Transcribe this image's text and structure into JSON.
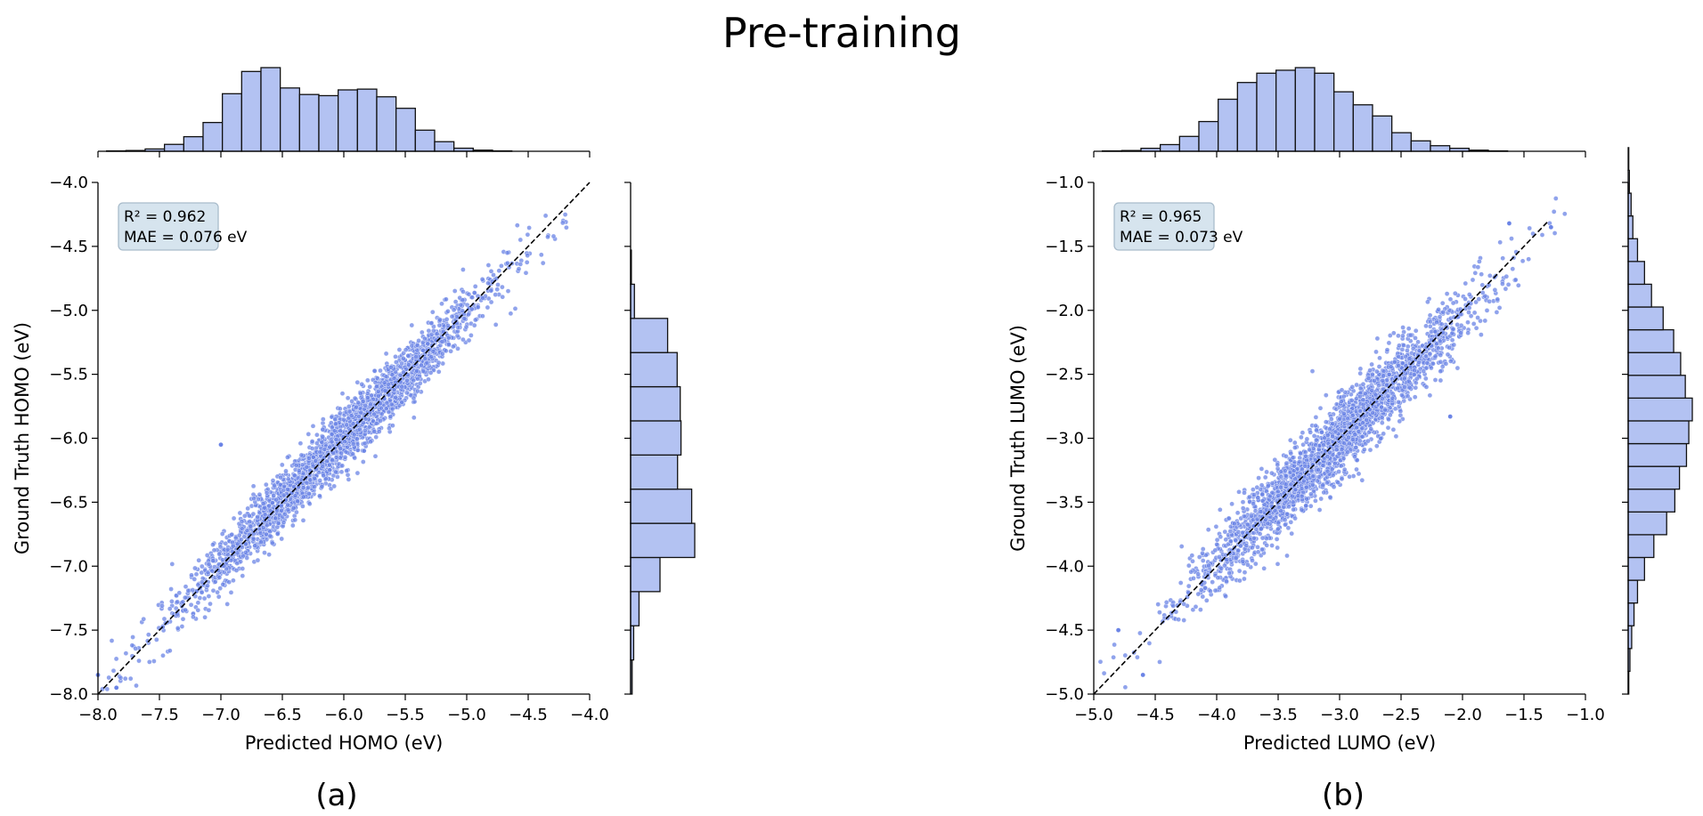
{
  "figure": {
    "title": "Pre-training"
  },
  "colors": {
    "point": "#6b84e6",
    "bar": "#b3c2f2",
    "bar_edge": "#111111",
    "stats_box": "#d6e4ee",
    "stats_box_edge": "#a9bccb",
    "diag_line": "#000000"
  },
  "chart_data": [
    {
      "type": "scatter",
      "panel_label": "(a)",
      "xlabel": "Predicted HOMO (eV)",
      "ylabel": "Ground Truth HOMO (eV)",
      "xlim": [
        -8.0,
        -4.0
      ],
      "ylim": [
        -8.0,
        -4.0
      ],
      "xticks": [
        "−8.0",
        "−7.5",
        "−7.0",
        "−6.5",
        "−6.0",
        "−5.5",
        "−5.0",
        "−4.5",
        "−4.0"
      ],
      "yticks": [
        "−8.0",
        "−7.5",
        "−7.0",
        "−6.5",
        "−6.0",
        "−5.5",
        "−5.0",
        "−4.5",
        "−4.0"
      ],
      "xtick_values": [
        -8.0,
        -7.5,
        -7.0,
        -6.5,
        -6.0,
        -5.5,
        -5.0,
        -4.5,
        -4.0
      ],
      "ytick_values": [
        -8.0,
        -7.5,
        -7.0,
        -6.5,
        -6.0,
        -5.5,
        -5.0,
        -4.5,
        -4.0
      ],
      "stats": {
        "r2_label": "R² = 0.962",
        "mae_label": "MAE = 0.076 eV"
      },
      "diagonal": [
        [
          -8.0,
          -8.0
        ],
        [
          -4.0,
          -4.0
        ]
      ],
      "scatter_spread": 0.08,
      "scatter_center": -6.05,
      "scatter_sd": 0.62,
      "outliers": [
        [
          -7.0,
          -6.05
        ],
        [
          -8.0,
          -7.85
        ],
        [
          -7.85,
          -7.95
        ]
      ],
      "top_hist": {
        "bin_start": -7.93,
        "bin_width": 0.157,
        "counts": [
          1,
          2,
          6,
          18,
          38,
          75,
          150,
          208,
          218,
          165,
          148,
          145,
          160,
          162,
          142,
          112,
          55,
          25,
          8,
          3,
          1
        ]
      },
      "right_hist": {
        "bin_start": -8.0,
        "bin_width": 0.267,
        "counts": [
          4,
          8,
          22,
          77,
          168,
          160,
          123,
          132,
          130,
          122,
          97,
          10,
          2
        ]
      }
    },
    {
      "type": "scatter",
      "panel_label": "(b)",
      "xlabel": "Predicted LUMO (eV)",
      "ylabel": "Ground Truth LUMO (eV)",
      "xlim": [
        -5.0,
        -1.0
      ],
      "ylim": [
        -5.0,
        -1.0
      ],
      "xticks": [
        "−5.0",
        "−4.5",
        "−4.0",
        "−3.5",
        "−3.0",
        "−2.5",
        "−2.0",
        "−1.5",
        "−1.0"
      ],
      "yticks": [
        "−5.0",
        "−4.5",
        "−4.0",
        "−3.5",
        "−3.0",
        "−2.5",
        "−2.0",
        "−1.5",
        "−1.0"
      ],
      "xtick_values": [
        -5.0,
        -4.5,
        -4.0,
        -3.5,
        -3.0,
        -2.5,
        -2.0,
        -1.5,
        -1.0
      ],
      "ytick_values": [
        -5.0,
        -4.5,
        -4.0,
        -3.5,
        -3.0,
        -2.5,
        -2.0,
        -1.5,
        -1.0
      ],
      "stats": {
        "r2_label": "R² = 0.965",
        "mae_label": "MAE = 0.073 eV"
      },
      "diagonal": [
        [
          -5.0,
          -5.0
        ],
        [
          -1.3,
          -1.3
        ]
      ],
      "scatter_spread": 0.1,
      "scatter_center": -3.05,
      "scatter_sd": 0.55,
      "outliers": [
        [
          -4.8,
          -4.5
        ],
        [
          -4.6,
          -4.85
        ],
        [
          -2.1,
          -2.83
        ],
        [
          -1.62,
          -1.32
        ],
        [
          -1.28,
          -1.35
        ]
      ],
      "top_hist": {
        "bin_start": -4.93,
        "bin_width": 0.157,
        "counts": [
          1,
          2,
          8,
          18,
          40,
          80,
          140,
          185,
          210,
          218,
          225,
          210,
          160,
          125,
          95,
          50,
          28,
          15,
          8,
          3,
          1
        ]
      },
      "right_hist": {
        "bin_start": -5.0,
        "bin_width": 0.178,
        "counts": [
          1,
          3,
          6,
          10,
          16,
          28,
          44,
          66,
          80,
          88,
          100,
          104,
          110,
          98,
          90,
          78,
          60,
          40,
          28,
          16,
          8,
          5,
          2,
          1
        ]
      }
    }
  ]
}
